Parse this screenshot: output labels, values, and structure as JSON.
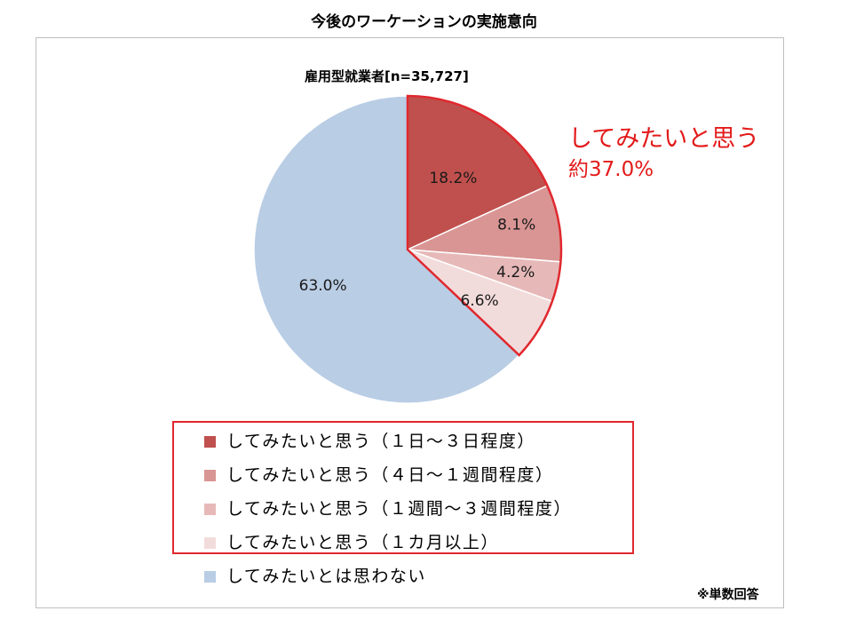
{
  "page": {
    "title": "今後のワーケーションの実施意向",
    "note": "※単数回答"
  },
  "callout": {
    "label": "してみたいと思う",
    "value": "約37.0%",
    "color": "#e31a1a"
  },
  "chart_data": {
    "type": "pie",
    "title": "雇用型就業者[n=35,727]",
    "series": [
      {
        "name": "してみたいと思う（１日～３日程度）",
        "value": 18.2,
        "label": "18.2%",
        "color": "#c0504d"
      },
      {
        "name": "してみたいと思う（４日～１週間程度）",
        "value": 8.1,
        "label": "8.1%",
        "color": "#d99594"
      },
      {
        "name": "してみたいと思う（１週間～３週間程度）",
        "value": 4.2,
        "label": "4.2%",
        "color": "#e6b9b8"
      },
      {
        "name": "してみたいと思う（１カ月以上）",
        "value": 6.6,
        "label": "6.6%",
        "color": "#f2dcdb"
      },
      {
        "name": "してみたいとは思わない",
        "value": 63.0,
        "label": "63.0%",
        "color": "#b9cde5"
      }
    ],
    "highlight_color": "#e0282e",
    "legend_position": "bottom"
  }
}
